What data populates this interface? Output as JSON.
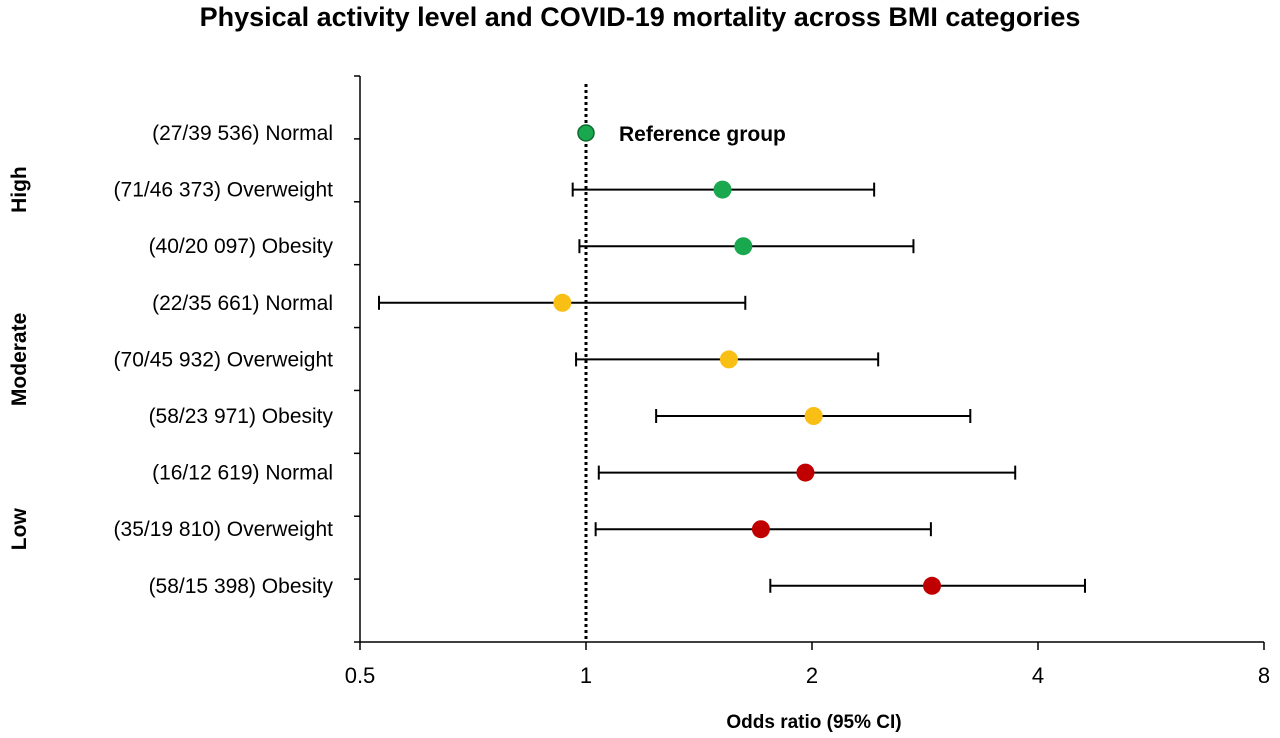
{
  "chart_data": {
    "type": "forest",
    "title": "Physical activity level and COVID-19 mortality across BMI categories",
    "xlabel": "Odds ratio (95% CI)",
    "x_scale": "log2",
    "xlim": [
      0.5,
      8
    ],
    "x_ticks": [
      0.5,
      1,
      2,
      4,
      8
    ],
    "x_tick_labels": [
      "0.5",
      "1",
      "2",
      "4",
      "8"
    ],
    "reference_line": 1,
    "reference_label": "Reference group",
    "groups": [
      {
        "name": "High",
        "color": "#1aa84f",
        "rows": [
          {
            "label": "(27/39 536) Normal",
            "or": 1.0,
            "lo": null,
            "hi": null,
            "reference": true
          },
          {
            "label": "(71/46 373) Overweight",
            "or": 1.52,
            "lo": 0.96,
            "hi": 2.42
          },
          {
            "label": "(40/20 097) Obesity",
            "or": 1.62,
            "lo": 0.98,
            "hi": 2.73
          }
        ]
      },
      {
        "name": "Moderate",
        "color": "#f9bf14",
        "rows": [
          {
            "label": "(22/35 661) Normal",
            "or": 0.93,
            "lo": 0.53,
            "hi": 1.63
          },
          {
            "label": "(70/45 932) Overweight",
            "or": 1.55,
            "lo": 0.97,
            "hi": 2.45
          },
          {
            "label": "(58/23 971) Obesity",
            "or": 2.01,
            "lo": 1.24,
            "hi": 3.25
          }
        ]
      },
      {
        "name": "Low",
        "color": "#c00000",
        "rows": [
          {
            "label": "(16/12 619) Normal",
            "or": 1.96,
            "lo": 1.04,
            "hi": 3.73
          },
          {
            "label": "(35/19 810) Overweight",
            "or": 1.71,
            "lo": 1.03,
            "hi": 2.88
          },
          {
            "label": "(58/15 398) Obesity",
            "or": 2.89,
            "lo": 1.76,
            "hi": 4.62
          }
        ]
      }
    ]
  }
}
